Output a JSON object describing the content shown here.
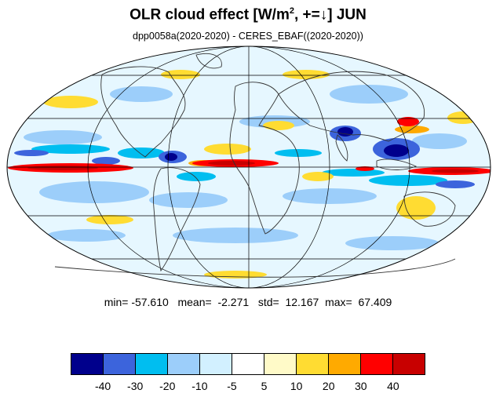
{
  "title": {
    "main": "OLR cloud effect [W/m",
    "sup": "2",
    "rest": ", +=↓]  JUN"
  },
  "subtitle": "dpp0058a(2020-2020) - CERES_EBAF((2020-2020))",
  "stats": {
    "min_label": "min=",
    "min": "-57.610",
    "mean_label": "mean=",
    "mean": "-2.271",
    "std_label": "std=",
    "std": "12.167",
    "max_label": "max=",
    "max": "67.409"
  },
  "legend": {
    "colors": [
      "#00008c",
      "#3c64dc",
      "#00bef0",
      "#9ccefa",
      "#d2f0ff",
      "#ffffff",
      "#fffac8",
      "#ffdc32",
      "#ffaa00",
      "#ff0000",
      "#c80000"
    ],
    "labels": [
      "-40",
      "-30",
      "-20",
      "-10",
      "-5",
      "5",
      "10",
      "20",
      "30",
      "40"
    ]
  }
}
